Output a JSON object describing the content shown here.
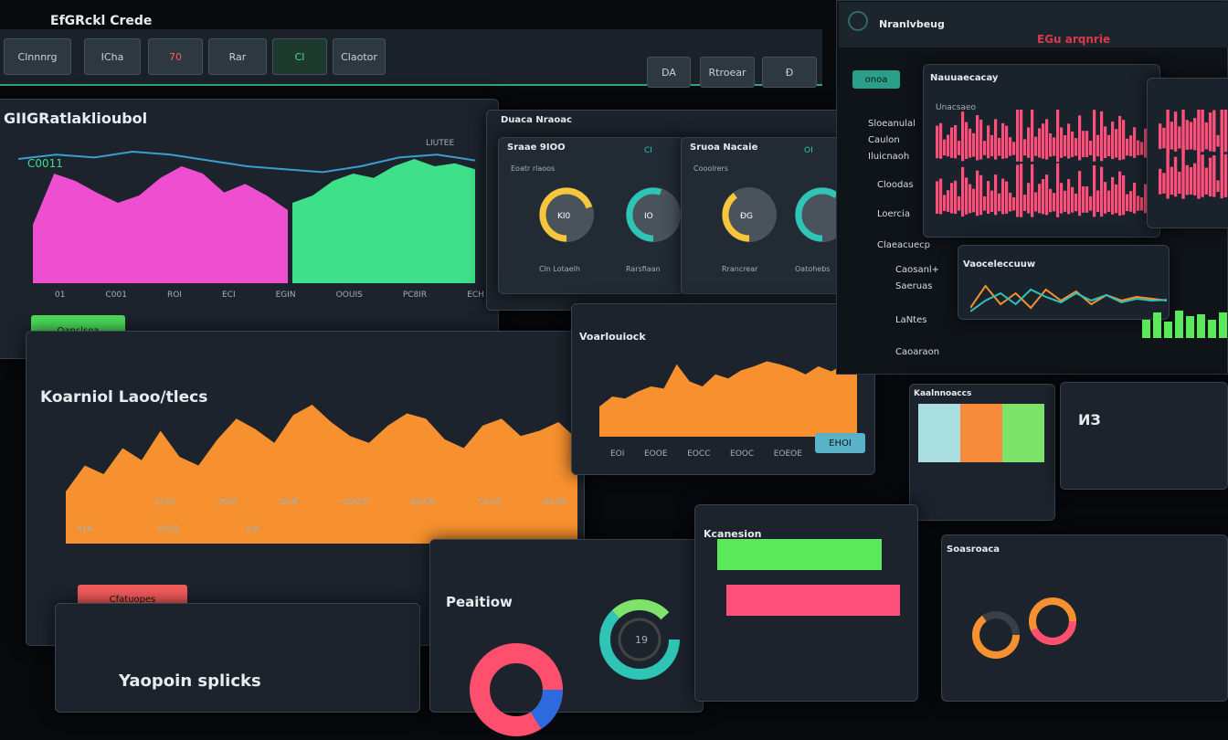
{
  "toolbar": {
    "app_title": "EfGRckl Crede",
    "buttons": [
      "Clnnnrg",
      "ICha",
      "70",
      "Rar",
      "Cl",
      "Claotor"
    ],
    "right_buttons": [
      "DA",
      "Rtroear",
      "Ð"
    ]
  },
  "panel_a": {
    "title": "GIIGRatlaklioubol",
    "legend": "C0011",
    "tag": "LIUTEE",
    "x_labels": [
      "01",
      "C001",
      "ROI",
      "ECI",
      "EGIN",
      "OOUIS",
      "PC8IR",
      "ECH"
    ],
    "button": "Oanclsoa",
    "pink": [
      40,
      75,
      70,
      62,
      55,
      60,
      72,
      80,
      75,
      62,
      68,
      60,
      50
    ],
    "green": [
      55,
      60,
      70,
      75,
      72,
      80,
      85,
      80,
      82,
      78
    ],
    "line": [
      85,
      88,
      86,
      90,
      88,
      84,
      80,
      78,
      76,
      80,
      86,
      88,
      84
    ]
  },
  "panel_b": {
    "title": "Duaca Nraoac",
    "cards": [
      {
        "title": "Sraae 9IOO",
        "badge": "CI",
        "sub": "Eoatr rlaoos",
        "gauges": [
          {
            "label": "KI0",
            "value": 0.7,
            "caption": "Cln Lotaelh"
          },
          {
            "label": "IO",
            "value": 0.55,
            "caption": "Rarsfiaan"
          }
        ]
      },
      {
        "title": "Sruoa Nacaie",
        "badge": "OI",
        "sub": "Cooolrers",
        "gauges": [
          {
            "label": "ÐG",
            "value": 0.4,
            "caption": "Rrancrear"
          },
          {
            "label": "",
            "value": 0.6,
            "caption": "Oatohebs"
          }
        ]
      }
    ]
  },
  "panel_c": {
    "title": "Koarniol Laoo/tlecs",
    "x_labels": [
      "ECIO",
      "8OIS",
      "SOIE",
      "OOICE",
      "DDOE",
      "CCOS",
      "ECOE"
    ],
    "y_labels": [
      "810",
      "E0SE",
      "IOII"
    ],
    "button": "Cfatuopes",
    "values": [
      30,
      45,
      40,
      55,
      48,
      65,
      50,
      45,
      60,
      72,
      66,
      58,
      74,
      80,
      70,
      62,
      58,
      68,
      75,
      72,
      60,
      55,
      68,
      72,
      62,
      65,
      70,
      60
    ]
  },
  "panel_d": {
    "title": "Voarlouiock",
    "x_labels": [
      "EOI",
      "EOOE",
      "EOCC",
      "EOOC",
      "EOEOE"
    ],
    "button": "EHOI",
    "values": [
      30,
      40,
      38,
      45,
      50,
      48,
      72,
      55,
      50,
      62,
      58,
      66,
      70,
      75,
      72,
      68,
      62,
      70,
      65,
      72,
      68
    ]
  },
  "monitor": {
    "logo": "Nranlvbeug",
    "alert": "EGu arqnrie",
    "nav_button": "onoa",
    "nav": [
      "Sloeanulal",
      "Caulon",
      "Iluicnaoh",
      "Cloodas",
      "Loercia",
      "Claeacuecp",
      "Caosanl+",
      "Saeruas",
      "LaNtes",
      "Caoaraon"
    ],
    "chart_title": "Nauuaecacay",
    "chart_sub": "Unacsaeo",
    "wave_title": "Vaoceleccuuw"
  },
  "panel_e": {
    "title": "Peaitiow",
    "donut_label": "19"
  },
  "panel_f": {
    "title": "Kcanesion",
    "bars": [
      {
        "value": 0.9,
        "color": "#5be85b"
      },
      {
        "value": 0.95,
        "color": "#ff4f7a"
      }
    ]
  },
  "panel_g": {
    "title": "Yaopoin splicks"
  },
  "panel_h": {
    "title": "Kaalnnoaccs",
    "badge": "ИЗ",
    "colors": [
      "#a8dee0",
      "#f58a3a",
      "#7ee36a"
    ]
  },
  "panel_i": {
    "title": "Soasroaca",
    "donuts": [
      "A",
      "B"
    ]
  },
  "colors": {
    "pink": "#ee4fd0",
    "green": "#3fe08a",
    "orange": "#f7902f",
    "red": "#ff4f6f",
    "teal": "#2ec4b6"
  }
}
